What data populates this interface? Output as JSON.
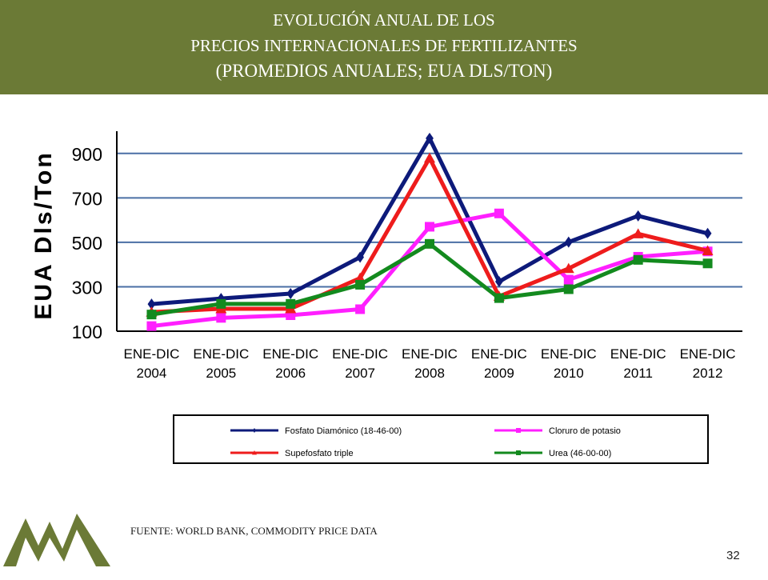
{
  "header": {
    "title_line1": "EVOLUCIÓN ANUAL DE LOS",
    "title_line2": "PRECIOS INTERNACIONALES DE FERTILIZANTES",
    "title_line3": "(PROMEDIOS ANUALES; EUA DLS/TON)",
    "background": "#6b7a36"
  },
  "chart_data": {
    "type": "line",
    "ylabel": "EUA Dls/Ton",
    "xlabel": "",
    "ylim": [
      100,
      1000
    ],
    "yticks": [
      100,
      300,
      500,
      700,
      900
    ],
    "grid": true,
    "legend": "bottom",
    "categories": [
      [
        "ENE-DIC",
        "2004"
      ],
      [
        "ENE-DIC",
        "2005"
      ],
      [
        "ENE-DIC",
        "2006"
      ],
      [
        "ENE-DIC",
        "2007"
      ],
      [
        "ENE-DIC",
        "2008"
      ],
      [
        "ENE-DIC",
        "2009"
      ],
      [
        "ENE-DIC",
        "2010"
      ],
      [
        "ENE-DIC",
        "2011"
      ],
      [
        "ENE-DIC",
        "2012"
      ]
    ],
    "series": [
      {
        "name": "Fosfato Diamónico (18-46-00)",
        "color": "#0d1a7a",
        "marker": "diamond",
        "values": [
          222,
          247,
          269,
          433,
          968,
          323,
          501,
          619,
          540
        ]
      },
      {
        "name": "Cloruro de potasio",
        "color": "#ff1fff",
        "marker": "square",
        "values": [
          123,
          160,
          172,
          199,
          570,
          630,
          332,
          435,
          459
        ]
      },
      {
        "name": "Supefosfato triple",
        "color": "#ee1c1c",
        "marker": "triangle",
        "values": [
          186,
          201,
          201,
          339,
          879,
          257,
          382,
          538,
          462
        ]
      },
      {
        "name": "Urea (46-00-00)",
        "color": "#138a1e",
        "marker": "square",
        "values": [
          175,
          223,
          223,
          309,
          493,
          249,
          289,
          421,
          405
        ]
      }
    ]
  },
  "footer": {
    "source": "FUENTE: WORLD BANK, COMMODITY PRICE DATA",
    "page_number": "32"
  }
}
